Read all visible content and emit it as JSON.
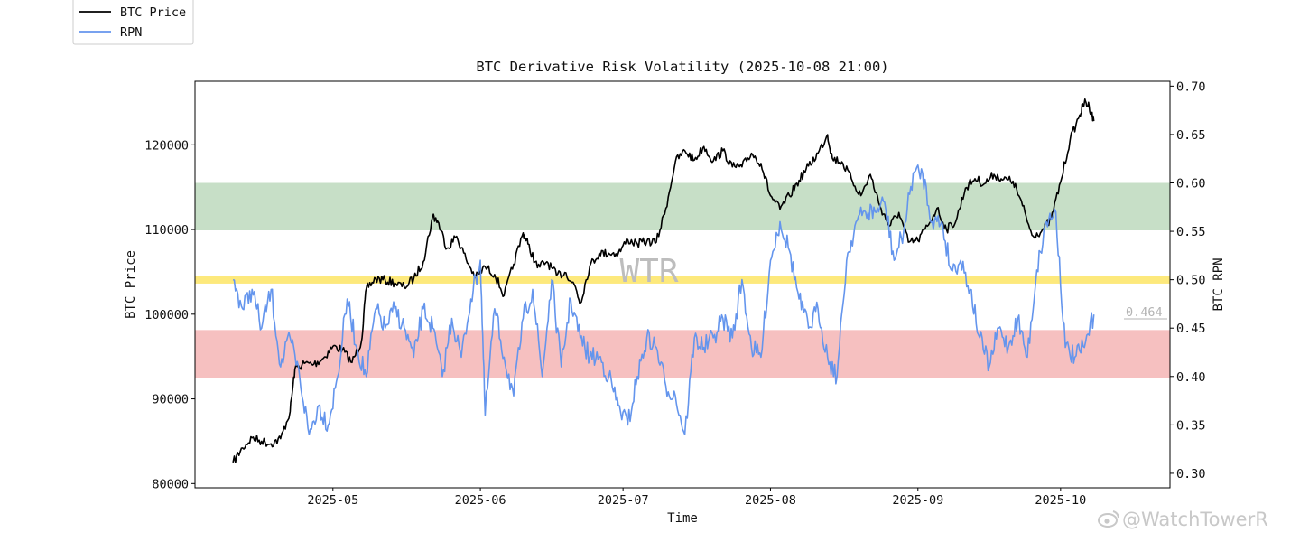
{
  "chart_data": {
    "type": "line",
    "title": "BTC Derivative Risk Volatility (2025-10-08 21:00)",
    "xlabel": "Time",
    "ylabel_left": "BTC Price",
    "ylabel_right": "BTC RPN",
    "ylim_left": [
      79500,
      127500
    ],
    "ylim_right": [
      0.285,
      0.705
    ],
    "yticks_left": [
      80000,
      90000,
      100000,
      110000,
      120000
    ],
    "ytick_labels_left": [
      "80000",
      "90000",
      "100000",
      "110000",
      "120000"
    ],
    "yticks_right": [
      0.3,
      0.35,
      0.4,
      0.45,
      0.5,
      0.55,
      0.6,
      0.65,
      0.7
    ],
    "ytick_labels_right": [
      "0.30",
      "0.35",
      "0.40",
      "0.45",
      "0.50",
      "0.55",
      "0.60",
      "0.65",
      "0.70"
    ],
    "xrange": [
      "2025-04-02",
      "2025-10-24"
    ],
    "xticks": [
      "2025-05-01",
      "2025-06-01",
      "2025-07-01",
      "2025-08-01",
      "2025-09-01",
      "2025-10-01"
    ],
    "xtick_labels": [
      "2025-05",
      "2025-06",
      "2025-07",
      "2025-08",
      "2025-09",
      "2025-10"
    ],
    "legend_position": "top-left (outside plot)",
    "legend": [
      {
        "label": "BTC Price",
        "color": "#000000"
      },
      {
        "label": "RPN",
        "color": "#6495ed"
      }
    ],
    "bands": [
      {
        "axis": "right",
        "from": 0.551,
        "to": 0.6,
        "color": "#c7dfc7"
      },
      {
        "axis": "right",
        "from": 0.496,
        "to": 0.504,
        "color": "#fde97c"
      },
      {
        "axis": "right",
        "from": 0.398,
        "to": 0.448,
        "color": "#f6c0c0"
      }
    ],
    "current_value_label": "0.464",
    "current_value": 0.464,
    "watermark": "WTR",
    "credit": "@WatchTowerR",
    "series": [
      {
        "name": "BTC Price",
        "axis": "left",
        "color": "#000000",
        "x": [
          "2025-04-10",
          "2025-04-12",
          "2025-04-14",
          "2025-04-16",
          "2025-04-18",
          "2025-04-20",
          "2025-04-22",
          "2025-04-23",
          "2025-04-25",
          "2025-04-27",
          "2025-04-29",
          "2025-05-01",
          "2025-05-03",
          "2025-05-05",
          "2025-05-07",
          "2025-05-08",
          "2025-05-10",
          "2025-05-12",
          "2025-05-14",
          "2025-05-16",
          "2025-05-18",
          "2025-05-20",
          "2025-05-22",
          "2025-05-23",
          "2025-05-25",
          "2025-05-27",
          "2025-05-29",
          "2025-05-31",
          "2025-06-02",
          "2025-06-04",
          "2025-06-06",
          "2025-06-08",
          "2025-06-10",
          "2025-06-11",
          "2025-06-13",
          "2025-06-15",
          "2025-06-17",
          "2025-06-19",
          "2025-06-21",
          "2025-06-22",
          "2025-06-24",
          "2025-06-26",
          "2025-06-28",
          "2025-06-30",
          "2025-07-02",
          "2025-07-04",
          "2025-07-06",
          "2025-07-08",
          "2025-07-10",
          "2025-07-12",
          "2025-07-14",
          "2025-07-16",
          "2025-07-18",
          "2025-07-20",
          "2025-07-22",
          "2025-07-24",
          "2025-07-26",
          "2025-07-28",
          "2025-07-30",
          "2025-08-01",
          "2025-08-03",
          "2025-08-05",
          "2025-08-07",
          "2025-08-09",
          "2025-08-11",
          "2025-08-13",
          "2025-08-14",
          "2025-08-16",
          "2025-08-18",
          "2025-08-20",
          "2025-08-22",
          "2025-08-24",
          "2025-08-26",
          "2025-08-28",
          "2025-08-30",
          "2025-09-01",
          "2025-09-03",
          "2025-09-05",
          "2025-09-07",
          "2025-09-09",
          "2025-09-11",
          "2025-09-13",
          "2025-09-15",
          "2025-09-17",
          "2025-09-19",
          "2025-09-21",
          "2025-09-23",
          "2025-09-25",
          "2025-09-27",
          "2025-09-29",
          "2025-10-01",
          "2025-10-03",
          "2025-10-05",
          "2025-10-06",
          "2025-10-07",
          "2025-10-08"
        ],
        "y": [
          82500,
          84200,
          85400,
          85000,
          84700,
          85300,
          88500,
          93500,
          94200,
          94100,
          94800,
          96200,
          95800,
          94300,
          96800,
          103000,
          104200,
          104000,
          103700,
          103200,
          104200,
          106200,
          111600,
          111000,
          107800,
          109200,
          106500,
          104300,
          105600,
          104700,
          102200,
          105900,
          109600,
          108300,
          105500,
          106200,
          104600,
          104900,
          103200,
          101300,
          105700,
          107200,
          107200,
          107200,
          108800,
          108300,
          108600,
          108500,
          112500,
          118000,
          119300,
          118200,
          119800,
          118100,
          119300,
          117400,
          117400,
          119000,
          117800,
          114000,
          112400,
          114000,
          115800,
          117500,
          119000,
          121200,
          118400,
          118000,
          116000,
          114000,
          116500,
          112800,
          110400,
          112000,
          108500,
          108700,
          110400,
          112500,
          110000,
          111000,
          114900,
          116000,
          115400,
          116500,
          115900,
          115700,
          112800,
          109300,
          109800,
          111200,
          115600,
          120600,
          123500,
          125000,
          124600,
          122800
        ]
      },
      {
        "name": "RPN",
        "axis": "right",
        "color": "#6495ed",
        "x": [
          "2025-04-10",
          "2025-04-12",
          "2025-04-14",
          "2025-04-16",
          "2025-04-18",
          "2025-04-20",
          "2025-04-22",
          "2025-04-24",
          "2025-04-26",
          "2025-04-28",
          "2025-04-30",
          "2025-05-02",
          "2025-05-04",
          "2025-05-06",
          "2025-05-08",
          "2025-05-10",
          "2025-05-12",
          "2025-05-14",
          "2025-05-16",
          "2025-05-18",
          "2025-05-20",
          "2025-05-22",
          "2025-05-24",
          "2025-05-26",
          "2025-05-28",
          "2025-05-30",
          "2025-06-01",
          "2025-06-02",
          "2025-06-04",
          "2025-06-06",
          "2025-06-08",
          "2025-06-10",
          "2025-06-12",
          "2025-06-14",
          "2025-06-16",
          "2025-06-18",
          "2025-06-20",
          "2025-06-22",
          "2025-06-24",
          "2025-06-26",
          "2025-06-28",
          "2025-06-30",
          "2025-07-02",
          "2025-07-04",
          "2025-07-06",
          "2025-07-08",
          "2025-07-10",
          "2025-07-12",
          "2025-07-14",
          "2025-07-16",
          "2025-07-18",
          "2025-07-20",
          "2025-07-22",
          "2025-07-24",
          "2025-07-26",
          "2025-07-28",
          "2025-07-30",
          "2025-08-01",
          "2025-08-03",
          "2025-08-05",
          "2025-08-07",
          "2025-08-09",
          "2025-08-11",
          "2025-08-13",
          "2025-08-15",
          "2025-08-17",
          "2025-08-19",
          "2025-08-21",
          "2025-08-23",
          "2025-08-25",
          "2025-08-27",
          "2025-08-29",
          "2025-08-31",
          "2025-09-02",
          "2025-09-04",
          "2025-09-06",
          "2025-09-08",
          "2025-09-10",
          "2025-09-12",
          "2025-09-14",
          "2025-09-16",
          "2025-09-18",
          "2025-09-20",
          "2025-09-22",
          "2025-09-24",
          "2025-09-26",
          "2025-09-28",
          "2025-09-30",
          "2025-10-02",
          "2025-10-04",
          "2025-10-06",
          "2025-10-08"
        ],
        "y": [
          0.5,
          0.47,
          0.49,
          0.45,
          0.49,
          0.41,
          0.44,
          0.4,
          0.34,
          0.37,
          0.35,
          0.4,
          0.48,
          0.43,
          0.4,
          0.47,
          0.45,
          0.47,
          0.45,
          0.42,
          0.47,
          0.45,
          0.4,
          0.46,
          0.42,
          0.48,
          0.52,
          0.36,
          0.47,
          0.42,
          0.38,
          0.46,
          0.49,
          0.4,
          0.5,
          0.41,
          0.48,
          0.44,
          0.42,
          0.42,
          0.4,
          0.37,
          0.35,
          0.4,
          0.44,
          0.43,
          0.39,
          0.38,
          0.34,
          0.44,
          0.43,
          0.44,
          0.46,
          0.44,
          0.5,
          0.43,
          0.42,
          0.52,
          0.56,
          0.53,
          0.48,
          0.45,
          0.47,
          0.42,
          0.4,
          0.52,
          0.56,
          0.57,
          0.57,
          0.58,
          0.52,
          0.55,
          0.61,
          0.61,
          0.56,
          0.56,
          0.51,
          0.52,
          0.49,
          0.44,
          0.41,
          0.45,
          0.43,
          0.46,
          0.42,
          0.51,
          0.56,
          0.57,
          0.43,
          0.42,
          0.43,
          0.464
        ]
      }
    ]
  }
}
